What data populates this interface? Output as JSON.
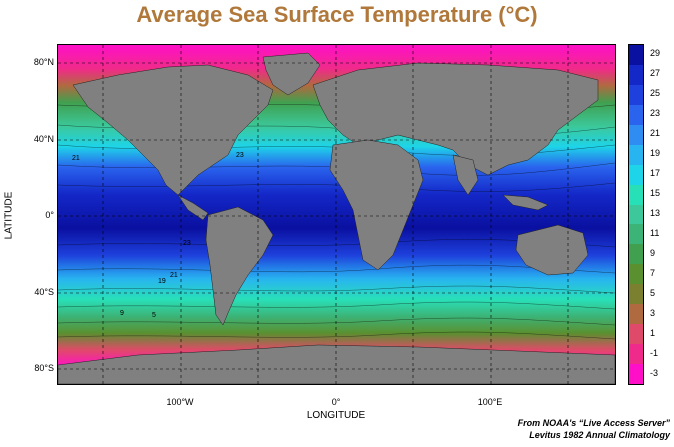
{
  "title": "Average Sea Surface Temperature (°C)",
  "axes": {
    "y_title": "LATITUDE",
    "x_title": "LONGITUDE",
    "lat_ticks": [
      "80°N",
      "40°N",
      "0°",
      "40°S",
      "80°S"
    ],
    "lon_ticks": [
      "100°W",
      "0°",
      "100°E"
    ]
  },
  "colorbar": {
    "labels": [
      "29",
      "27",
      "25",
      "23",
      "21",
      "19",
      "17",
      "15",
      "13",
      "11",
      "9",
      "7",
      "5",
      "3",
      "1",
      "-1",
      "-3"
    ],
    "colors": [
      "#0a10a0",
      "#1428c8",
      "#1e40dc",
      "#2a64ee",
      "#2e8cf2",
      "#28b4f0",
      "#1ed4e8",
      "#28e0b8",
      "#3cc89a",
      "#3cb478",
      "#40a050",
      "#5a9030",
      "#7a8030",
      "#b06a40",
      "#e04a6a",
      "#f02a8a",
      "#ff10c8"
    ]
  },
  "map": {
    "land_color": "#808080",
    "contour_labels": [
      "21",
      "23",
      "23",
      "19",
      "21",
      "9",
      "5"
    ]
  },
  "credit": {
    "line1": "From NOAA's “Live Access Server”",
    "line2": "Levitus 1982 Annual Climatology"
  }
}
